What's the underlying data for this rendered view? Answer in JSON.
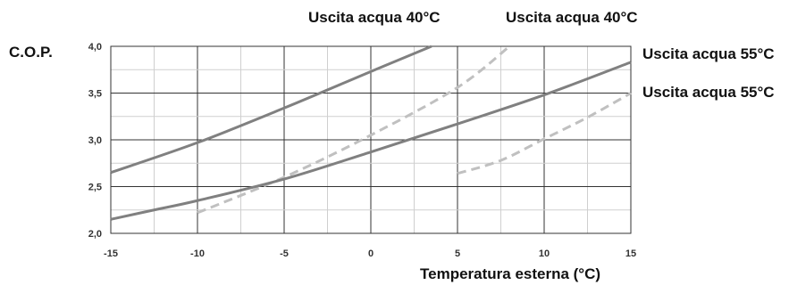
{
  "chart_data": {
    "type": "line",
    "title": "",
    "ylabel": "C.O.P.",
    "xlabel": "Temperatura esterna (°C)",
    "xlim": [
      -15,
      15
    ],
    "ylim": [
      2.0,
      4.0
    ],
    "x_ticks": [
      "-15",
      "-10",
      "-5",
      "0",
      "5",
      "10",
      "15"
    ],
    "y_ticks": [
      "2,0",
      "2,5",
      "3,0",
      "3,5",
      "4,0"
    ],
    "grid": true,
    "legend": "labels around plot edges",
    "colors": {
      "solid": "#808080",
      "dashed": "#c0c0c0",
      "grid": "#cfcfcf",
      "major_grid": "#333333"
    },
    "series": [
      {
        "name": "Uscita acqua 40°C",
        "style": "solid",
        "x": [
          -15,
          -10,
          -5,
          0,
          3.5
        ],
        "y": [
          2.65,
          2.97,
          3.34,
          3.73,
          4.0
        ]
      },
      {
        "name": "Uscita acqua 40°C",
        "style": "dashed",
        "x": [
          -10,
          -5,
          0,
          5,
          8
        ],
        "y": [
          2.22,
          2.6,
          3.05,
          3.56,
          4.0
        ]
      },
      {
        "name": "Uscita acqua 55°C",
        "style": "solid",
        "x": [
          -15,
          -12.5,
          -10,
          -5,
          0,
          5,
          10,
          15
        ],
        "y": [
          2.15,
          2.25,
          2.35,
          2.58,
          2.87,
          3.17,
          3.48,
          3.83
        ]
      },
      {
        "name": "Uscita acqua 55°C",
        "style": "dashed",
        "x": [
          5,
          7.5,
          10,
          12.5,
          15
        ],
        "y": [
          2.64,
          2.78,
          3.01,
          3.24,
          3.5
        ]
      }
    ]
  }
}
